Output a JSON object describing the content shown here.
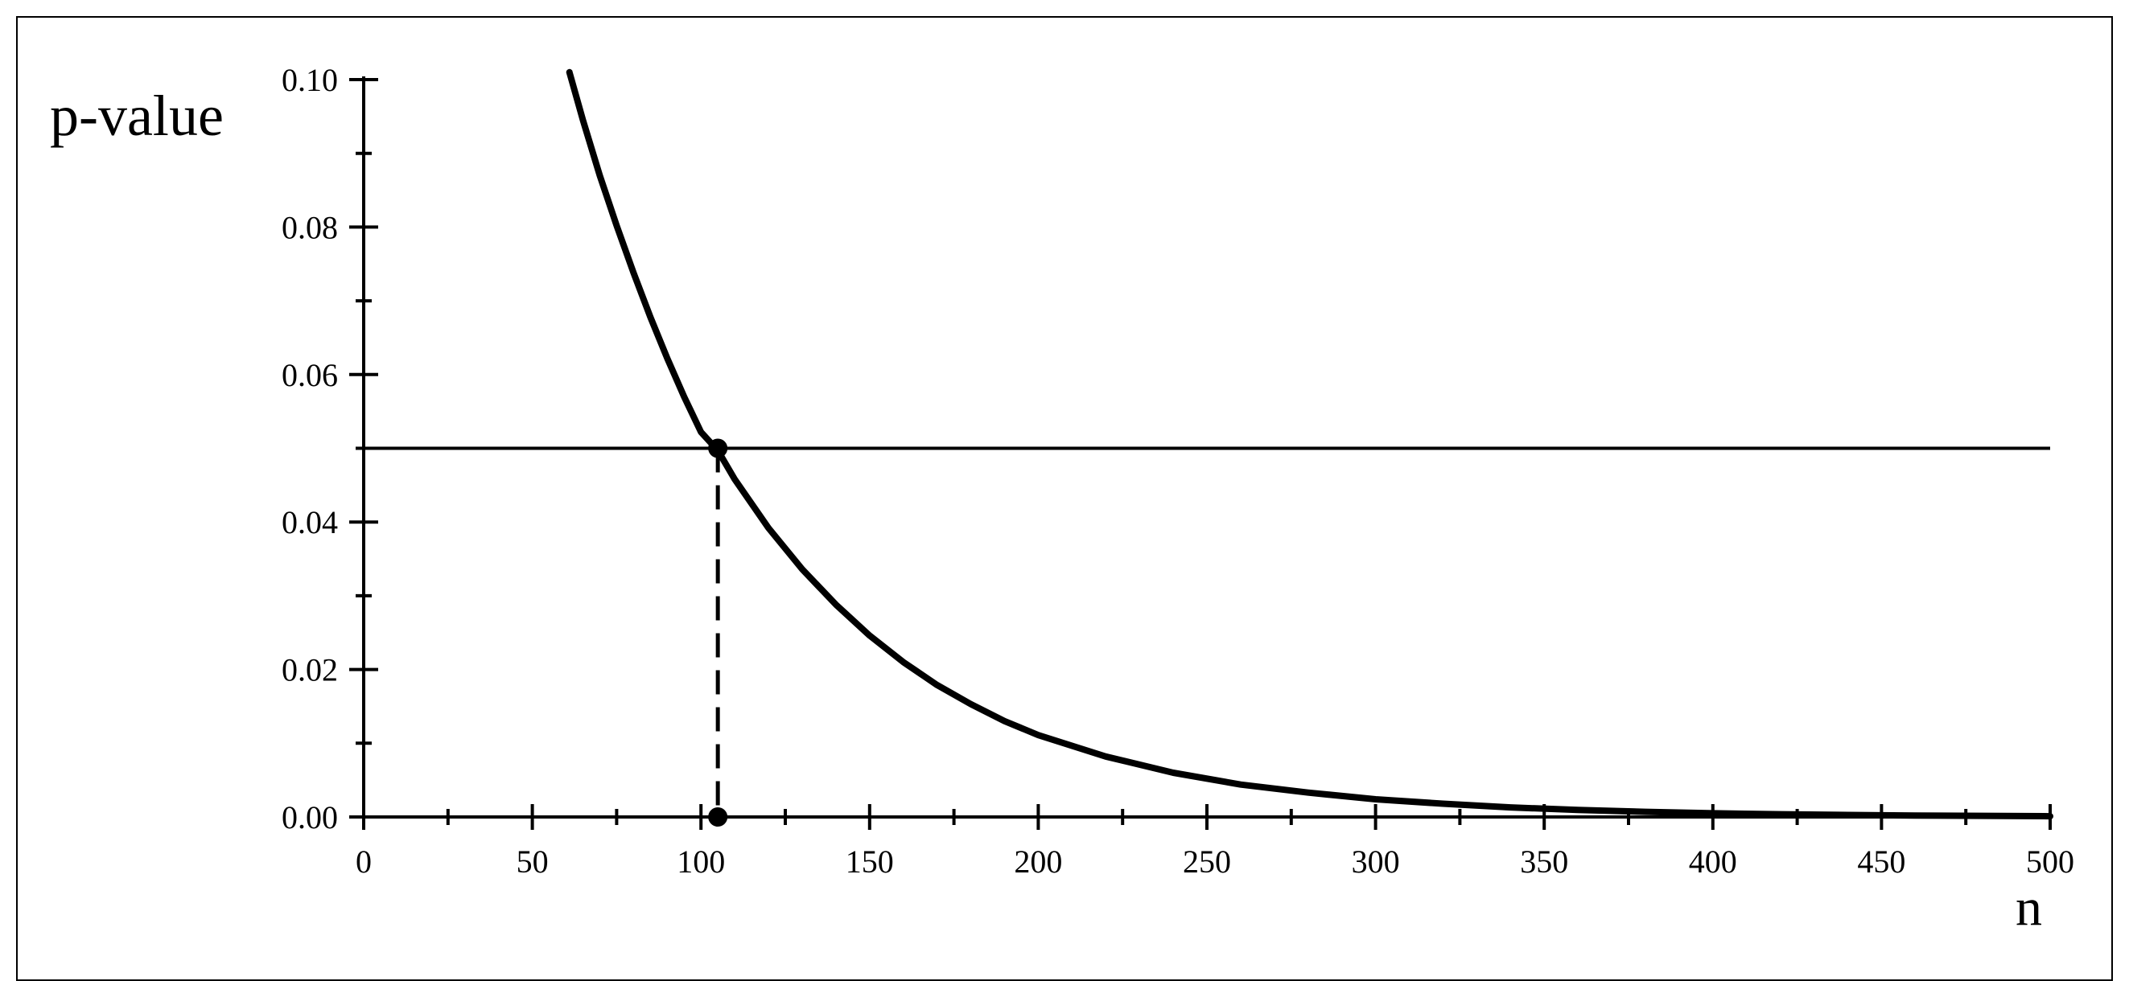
{
  "chart_data": {
    "type": "line",
    "title": "",
    "xlabel": "n",
    "ylabel": "p-value",
    "xlim": [
      0,
      500
    ],
    "ylim": [
      0.0,
      0.1
    ],
    "x_major_ticks": [
      0,
      50,
      100,
      150,
      200,
      250,
      300,
      350,
      400,
      450,
      500
    ],
    "x_tick_labels": [
      "0",
      "50",
      "100",
      "150",
      "200",
      "250",
      "300",
      "350",
      "400",
      "450",
      "500"
    ],
    "x_minor_ticks": [
      25,
      75,
      125,
      175,
      225,
      275,
      325,
      375,
      425,
      475
    ],
    "y_major_ticks": [
      0.0,
      0.02,
      0.04,
      0.06,
      0.08,
      0.1
    ],
    "y_tick_labels": [
      "0.00",
      "0.02",
      "0.04",
      "0.06",
      "0.08",
      "0.10"
    ],
    "y_minor_ticks": [
      0.01,
      0.03,
      0.05,
      0.07,
      0.09
    ],
    "grid": false,
    "series": [
      {
        "kind": "curve",
        "x": [
          61,
          65,
          70,
          75,
          80,
          85,
          90,
          95,
          100,
          105,
          110,
          120,
          130,
          140,
          150,
          160,
          170,
          180,
          190,
          200,
          220,
          240,
          260,
          280,
          300,
          320,
          340,
          360,
          380,
          400,
          420,
          440,
          460,
          480,
          500
        ],
        "y": [
          0.101,
          0.0945,
          0.087,
          0.0802,
          0.0738,
          0.0678,
          0.0622,
          0.057,
          0.0522,
          0.0497,
          0.0458,
          0.0392,
          0.0336,
          0.0288,
          0.0246,
          0.021,
          0.0179,
          0.0153,
          0.013,
          0.0111,
          0.0082,
          0.006,
          0.0044,
          0.0033,
          0.0024,
          0.0018,
          0.0013,
          0.00095,
          0.0007,
          0.0005,
          0.00037,
          0.00027,
          0.0002,
          0.00015,
          0.0001
        ]
      },
      {
        "kind": "hline",
        "y": 0.05,
        "x": [
          0,
          500
        ]
      },
      {
        "kind": "dashed-vline",
        "x": 105,
        "y": [
          0.0,
          0.05
        ]
      }
    ],
    "points": [
      {
        "x": 105,
        "y": 0.05
      },
      {
        "x": 105,
        "y": 0.0
      }
    ]
  }
}
